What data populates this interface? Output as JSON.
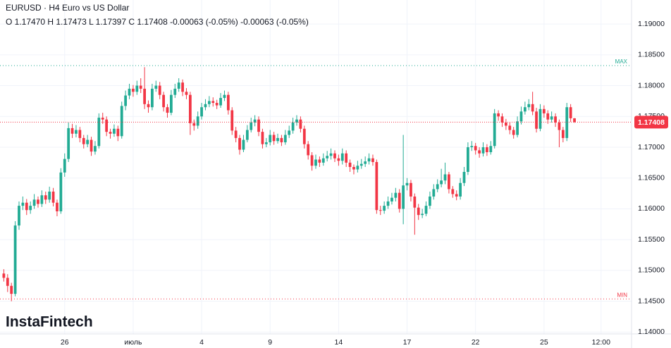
{
  "chart_data": {
    "type": "candlestick",
    "title": "EURUSD · H4 Euro vs US Dollar",
    "subtitle": "O 1.17470 H 1.17473 L 1.17397 C 1.17408 -0.00063 (-0.05%) -0.00063 (-0.05%)",
    "logo": "InstaFintech",
    "up_color": "#22ab94",
    "down_color": "#f23645",
    "grid": true,
    "ylim": [
      1.1397,
      1.1939
    ],
    "yticks": [
      {
        "value": 1.14,
        "label": "1.14000"
      },
      {
        "value": 1.145,
        "label": "1.14500"
      },
      {
        "value": 1.15,
        "label": "1.15000"
      },
      {
        "value": 1.155,
        "label": "1.15500"
      },
      {
        "value": 1.16,
        "label": "1.16000"
      },
      {
        "value": 1.165,
        "label": "1.16500"
      },
      {
        "value": 1.17,
        "label": "1.17000"
      },
      {
        "value": 1.175,
        "label": "1.17500"
      },
      {
        "value": 1.18,
        "label": "1.18000"
      },
      {
        "value": 1.185,
        "label": "1.18500"
      },
      {
        "value": 1.19,
        "label": "1.19000"
      }
    ],
    "xlim": [
      -1,
      165
    ],
    "xticks": [
      {
        "value": 16,
        "label": "26"
      },
      {
        "value": 34,
        "label": "июль"
      },
      {
        "value": 52,
        "label": "4"
      },
      {
        "value": 70,
        "label": "9"
      },
      {
        "value": 88,
        "label": "14"
      },
      {
        "value": 106,
        "label": "17"
      },
      {
        "value": 124,
        "label": "22"
      },
      {
        "value": 142,
        "label": "25"
      },
      {
        "value": 157,
        "label": "12:00"
      }
    ],
    "max_line": {
      "value": 1.18325,
      "label": "MAX",
      "color": "#22ab94"
    },
    "min_line": {
      "value": 1.14538,
      "label": "MIN",
      "color": "#f23645"
    },
    "price_line": 1.17408,
    "ohlc": [
      [
        1.1495,
        1.1502,
        1.1482,
        1.1488
      ],
      [
        1.1488,
        1.1494,
        1.1465,
        1.1475
      ],
      [
        1.1475,
        1.148,
        1.145,
        1.1462
      ],
      [
        1.1462,
        1.158,
        1.1458,
        1.1573
      ],
      [
        1.1573,
        1.1612,
        1.1566,
        1.1605
      ],
      [
        1.1605,
        1.162,
        1.1598,
        1.161
      ],
      [
        1.161,
        1.1616,
        1.159,
        1.1598
      ],
      [
        1.1598,
        1.1612,
        1.1592,
        1.1605
      ],
      [
        1.1605,
        1.1624,
        1.16,
        1.1615
      ],
      [
        1.1615,
        1.162,
        1.1602,
        1.1608
      ],
      [
        1.1608,
        1.163,
        1.1603,
        1.1622
      ],
      [
        1.1622,
        1.1628,
        1.1608,
        1.1615
      ],
      [
        1.1615,
        1.1636,
        1.161,
        1.1628
      ],
      [
        1.1628,
        1.1634,
        1.1604,
        1.161
      ],
      [
        1.161,
        1.1615,
        1.1588,
        1.1596
      ],
      [
        1.1596,
        1.1666,
        1.1592,
        1.1659
      ],
      [
        1.1659,
        1.169,
        1.1652,
        1.1681
      ],
      [
        1.1681,
        1.174,
        1.1676,
        1.1731
      ],
      [
        1.1731,
        1.1738,
        1.1715,
        1.1722
      ],
      [
        1.1722,
        1.1736,
        1.1716,
        1.1728
      ],
      [
        1.1728,
        1.1733,
        1.1708,
        1.1715
      ],
      [
        1.1715,
        1.172,
        1.1698,
        1.1705
      ],
      [
        1.1705,
        1.172,
        1.17,
        1.1712
      ],
      [
        1.1712,
        1.1717,
        1.1686,
        1.1693
      ],
      [
        1.1693,
        1.171,
        1.1688,
        1.1702
      ],
      [
        1.1702,
        1.1755,
        1.1698,
        1.1748
      ],
      [
        1.1748,
        1.1756,
        1.1738,
        1.1745
      ],
      [
        1.1745,
        1.175,
        1.1718,
        1.1725
      ],
      [
        1.1725,
        1.173,
        1.1714,
        1.1722
      ],
      [
        1.1722,
        1.1737,
        1.1717,
        1.173
      ],
      [
        1.173,
        1.1735,
        1.171,
        1.1718
      ],
      [
        1.1718,
        1.1774,
        1.1714,
        1.1767
      ],
      [
        1.1767,
        1.1792,
        1.176,
        1.1784
      ],
      [
        1.1784,
        1.1803,
        1.1778,
        1.1795
      ],
      [
        1.1795,
        1.1801,
        1.1782,
        1.179
      ],
      [
        1.179,
        1.1808,
        1.1785,
        1.18
      ],
      [
        1.18,
        1.1812,
        1.1788,
        1.1795
      ],
      [
        1.1795,
        1.183,
        1.1762,
        1.177
      ],
      [
        1.177,
        1.1776,
        1.1756,
        1.1765
      ],
      [
        1.1765,
        1.1803,
        1.176,
        1.1795
      ],
      [
        1.1795,
        1.1808,
        1.179,
        1.18
      ],
      [
        1.18,
        1.1806,
        1.1778,
        1.1785
      ],
      [
        1.1785,
        1.179,
        1.1758,
        1.1765
      ],
      [
        1.1765,
        1.177,
        1.1748,
        1.1756
      ],
      [
        1.1756,
        1.1793,
        1.1752,
        1.1785
      ],
      [
        1.1785,
        1.1803,
        1.178,
        1.1795
      ],
      [
        1.1795,
        1.1812,
        1.179,
        1.1805
      ],
      [
        1.1805,
        1.181,
        1.1783,
        1.179
      ],
      [
        1.179,
        1.1796,
        1.1778,
        1.1785
      ],
      [
        1.1785,
        1.179,
        1.172,
        1.1739
      ],
      [
        1.1739,
        1.1745,
        1.1727,
        1.1735
      ],
      [
        1.1735,
        1.1758,
        1.173,
        1.175
      ],
      [
        1.175,
        1.1772,
        1.1745,
        1.1765
      ],
      [
        1.1765,
        1.1778,
        1.176,
        1.177
      ],
      [
        1.177,
        1.1783,
        1.1765,
        1.1775
      ],
      [
        1.1775,
        1.1781,
        1.1766,
        1.1772
      ],
      [
        1.1772,
        1.1777,
        1.1762,
        1.1768
      ],
      [
        1.1768,
        1.1788,
        1.1764,
        1.178
      ],
      [
        1.178,
        1.1792,
        1.1775,
        1.1785
      ],
      [
        1.1785,
        1.179,
        1.1753,
        1.176
      ],
      [
        1.176,
        1.1765,
        1.172,
        1.1727
      ],
      [
        1.1727,
        1.1733,
        1.1708,
        1.1715
      ],
      [
        1.1715,
        1.172,
        1.1688,
        1.1696
      ],
      [
        1.1696,
        1.172,
        1.1692,
        1.1712
      ],
      [
        1.1712,
        1.1736,
        1.1708,
        1.1728
      ],
      [
        1.1728,
        1.1748,
        1.1724,
        1.174
      ],
      [
        1.174,
        1.1752,
        1.1734,
        1.1745
      ],
      [
        1.1745,
        1.175,
        1.1718,
        1.1725
      ],
      [
        1.1725,
        1.173,
        1.1698,
        1.1705
      ],
      [
        1.1705,
        1.1715,
        1.17,
        1.1708
      ],
      [
        1.1708,
        1.1728,
        1.1703,
        1.172
      ],
      [
        1.172,
        1.1725,
        1.1704,
        1.171
      ],
      [
        1.171,
        1.1722,
        1.1706,
        1.1715
      ],
      [
        1.1715,
        1.172,
        1.1702,
        1.1708
      ],
      [
        1.1708,
        1.1728,
        1.1704,
        1.172
      ],
      [
        1.172,
        1.1735,
        1.1715,
        1.1727
      ],
      [
        1.1727,
        1.1748,
        1.1722,
        1.174
      ],
      [
        1.174,
        1.1752,
        1.1735,
        1.1745
      ],
      [
        1.1745,
        1.175,
        1.1724,
        1.173
      ],
      [
        1.173,
        1.1735,
        1.1698,
        1.1705
      ],
      [
        1.1705,
        1.171,
        1.168,
        1.1687
      ],
      [
        1.1687,
        1.1692,
        1.1662,
        1.167
      ],
      [
        1.167,
        1.1688,
        1.1665,
        1.168
      ],
      [
        1.168,
        1.1685,
        1.1668,
        1.1675
      ],
      [
        1.1675,
        1.169,
        1.167,
        1.1682
      ],
      [
        1.1682,
        1.1694,
        1.1677,
        1.1686
      ],
      [
        1.1686,
        1.1698,
        1.168,
        1.169
      ],
      [
        1.169,
        1.1695,
        1.1676,
        1.1682
      ],
      [
        1.1682,
        1.1688,
        1.167,
        1.1678
      ],
      [
        1.1678,
        1.1698,
        1.1672,
        1.169
      ],
      [
        1.169,
        1.1695,
        1.1668,
        1.1675
      ],
      [
        1.1675,
        1.168,
        1.166,
        1.1668
      ],
      [
        1.1668,
        1.1672,
        1.1656,
        1.1664
      ],
      [
        1.1664,
        1.1678,
        1.1659,
        1.167
      ],
      [
        1.167,
        1.1681,
        1.1665,
        1.1673
      ],
      [
        1.1673,
        1.1685,
        1.1668,
        1.1677
      ],
      [
        1.1677,
        1.169,
        1.1672,
        1.1682
      ],
      [
        1.1682,
        1.1688,
        1.167,
        1.1676
      ],
      [
        1.1676,
        1.168,
        1.1592,
        1.1598
      ],
      [
        1.1598,
        1.1605,
        1.159,
        1.1597
      ],
      [
        1.1597,
        1.1612,
        1.1592,
        1.1605
      ],
      [
        1.1605,
        1.162,
        1.16,
        1.1612
      ],
      [
        1.1612,
        1.1626,
        1.1607,
        1.1618
      ],
      [
        1.1618,
        1.1634,
        1.1612,
        1.1626
      ],
      [
        1.1626,
        1.1632,
        1.1594,
        1.16
      ],
      [
        1.16,
        1.172,
        1.1575,
        1.1638
      ],
      [
        1.1638,
        1.165,
        1.163,
        1.1642
      ],
      [
        1.1642,
        1.1647,
        1.1612,
        1.162
      ],
      [
        1.162,
        1.1625,
        1.1558,
        1.1602
      ],
      [
        1.1602,
        1.1608,
        1.1582,
        1.159
      ],
      [
        1.159,
        1.16,
        1.1585,
        1.1592
      ],
      [
        1.1592,
        1.1612,
        1.1588,
        1.1605
      ],
      [
        1.1605,
        1.1628,
        1.16,
        1.162
      ],
      [
        1.162,
        1.164,
        1.1615,
        1.1632
      ],
      [
        1.1632,
        1.1648,
        1.1627,
        1.164
      ],
      [
        1.164,
        1.1665,
        1.1635,
        1.1646
      ],
      [
        1.1646,
        1.1675,
        1.164,
        1.1656
      ],
      [
        1.1656,
        1.166,
        1.1625,
        1.1632
      ],
      [
        1.1632,
        1.1637,
        1.1618,
        1.1624
      ],
      [
        1.1624,
        1.163,
        1.1614,
        1.162
      ],
      [
        1.162,
        1.165,
        1.1615,
        1.1642
      ],
      [
        1.1642,
        1.1668,
        1.1637,
        1.166
      ],
      [
        1.166,
        1.1708,
        1.1655,
        1.17
      ],
      [
        1.17,
        1.171,
        1.1694,
        1.1702
      ],
      [
        1.1702,
        1.1707,
        1.1688,
        1.1695
      ],
      [
        1.1695,
        1.17,
        1.1683,
        1.169
      ],
      [
        1.169,
        1.1708,
        1.1685,
        1.17
      ],
      [
        1.17,
        1.1705,
        1.1686,
        1.1692
      ],
      [
        1.1692,
        1.171,
        1.1688,
        1.1702
      ],
      [
        1.1702,
        1.1762,
        1.1698,
        1.1755
      ],
      [
        1.1755,
        1.176,
        1.1743,
        1.175
      ],
      [
        1.175,
        1.1755,
        1.1733,
        1.174
      ],
      [
        1.174,
        1.1746,
        1.1728,
        1.1735
      ],
      [
        1.1735,
        1.174,
        1.1721,
        1.1728
      ],
      [
        1.1728,
        1.1733,
        1.1714,
        1.172
      ],
      [
        1.172,
        1.175,
        1.1716,
        1.1742
      ],
      [
        1.1742,
        1.1766,
        1.1737,
        1.1758
      ],
      [
        1.1758,
        1.1774,
        1.1753,
        1.1765
      ],
      [
        1.1765,
        1.1778,
        1.176,
        1.177
      ],
      [
        1.177,
        1.179,
        1.1752,
        1.1758
      ],
      [
        1.1758,
        1.1764,
        1.1724,
        1.173
      ],
      [
        1.173,
        1.177,
        1.1726,
        1.1762
      ],
      [
        1.1762,
        1.1768,
        1.1748,
        1.1755
      ],
      [
        1.1755,
        1.176,
        1.1738,
        1.1745
      ],
      [
        1.1745,
        1.1758,
        1.174,
        1.175
      ],
      [
        1.175,
        1.1755,
        1.1733,
        1.174
      ],
      [
        1.174,
        1.1745,
        1.17,
        1.1728
      ],
      [
        1.1728,
        1.1733,
        1.1708,
        1.1715
      ],
      [
        1.1715,
        1.1772,
        1.171,
        1.1765
      ],
      [
        1.1765,
        1.177,
        1.1741,
        1.1747
      ],
      [
        1.1747,
        1.17473,
        1.17397,
        1.17408
      ]
    ]
  }
}
